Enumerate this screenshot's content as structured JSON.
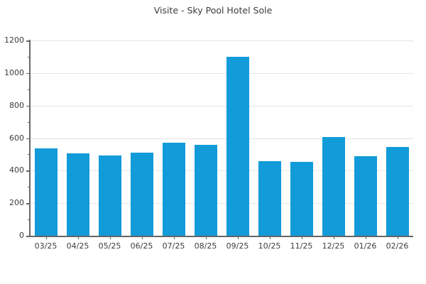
{
  "chart_data": {
    "type": "bar",
    "title": "Visite - Sky Pool Hotel Sole",
    "categories": [
      "03/25",
      "04/25",
      "05/25",
      "06/25",
      "07/25",
      "08/25",
      "09/25",
      "10/25",
      "11/25",
      "12/25",
      "01/26",
      "02/26"
    ],
    "values": [
      535,
      505,
      495,
      510,
      570,
      560,
      1100,
      460,
      455,
      608,
      490,
      545
    ],
    "xlabel": "",
    "ylabel": "",
    "ylim": [
      0,
      1200
    ],
    "yticks": [
      0,
      200,
      400,
      600,
      800,
      1000,
      1200
    ],
    "yticks_minor": [
      100,
      300,
      500,
      700,
      900,
      1100
    ],
    "grid": "horizontal-major",
    "legend": "none",
    "colors": {
      "bar": "#129bd9",
      "grid": "#e4e4e4",
      "axis": "#666666",
      "text": "#3c3c3c",
      "background": "#ffffff"
    }
  }
}
